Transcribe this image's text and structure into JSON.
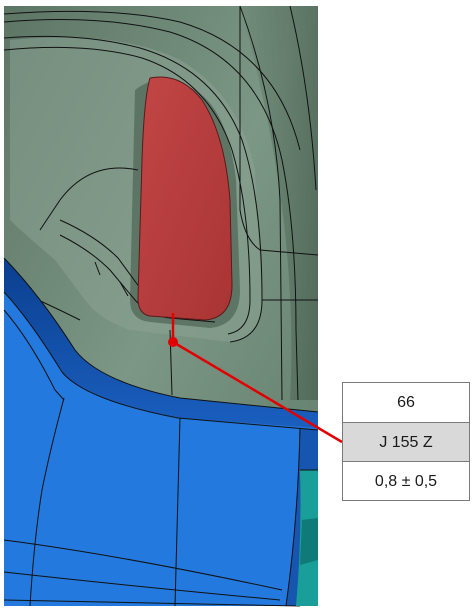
{
  "callout": {
    "number": "66",
    "code": "J 155 Z",
    "tolerance": "0,8 ± 0,5"
  },
  "colors": {
    "panel_green": "#6f8a78",
    "highlight_red": "#b83c3c",
    "body_blue": "#1f6fd4",
    "accent_teal": "#1a9e9a",
    "leader_red": "#e00000",
    "edge_black": "#111111"
  }
}
